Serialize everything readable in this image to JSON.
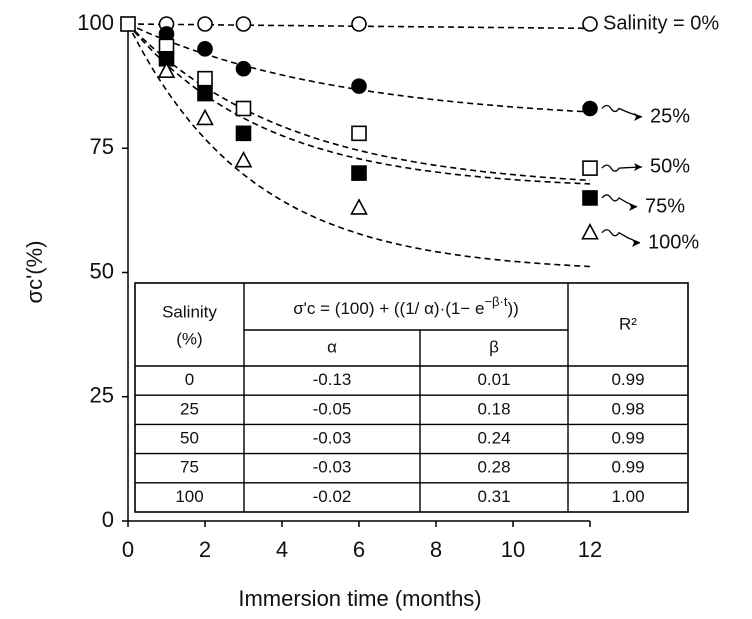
{
  "chart_data": {
    "type": "scatter",
    "x_label": "Immersion time (months)",
    "y_label": "σc'(%)",
    "xlim": [
      0,
      12
    ],
    "xticks": [
      0,
      2,
      4,
      6,
      8,
      10,
      12
    ],
    "ylim": [
      0,
      100
    ],
    "yticks": [
      0,
      25,
      50,
      75,
      100
    ],
    "grid": false,
    "series": [
      {
        "name": "Salinity = 0%",
        "color": "#000000",
        "marker": "circle",
        "filled": false,
        "x": [
          1,
          2,
          3,
          6,
          12
        ],
        "values": [
          100,
          100,
          100,
          100,
          100
        ]
      },
      {
        "name": "25%",
        "color": "#000000",
        "marker": "circle",
        "filled": true,
        "x": [
          1,
          2,
          3,
          6,
          12
        ],
        "values": [
          98,
          95,
          91,
          87.5,
          83
        ]
      },
      {
        "name": "50%",
        "color": "#000000",
        "marker": "square",
        "filled": false,
        "x": [
          0,
          1,
          2,
          3,
          6,
          12
        ],
        "values": [
          100,
          95.5,
          89,
          83,
          78,
          71
        ]
      },
      {
        "name": "75%",
        "color": "#000000",
        "marker": "square",
        "filled": true,
        "x": [
          1,
          2,
          3,
          6,
          12
        ],
        "values": [
          93,
          86,
          78,
          70,
          65
        ]
      },
      {
        "name": "100%",
        "color": "#000000",
        "marker": "triangle",
        "filled": false,
        "x": [
          1,
          2,
          3,
          6,
          12
        ],
        "values": [
          90.5,
          81,
          72.5,
          63,
          58
        ]
      }
    ],
    "table": {
      "salinity_header": [
        "Salinity",
        "(%)"
      ],
      "formula": {
        "lhs": "σ'c",
        "rhs": " = (100) + ((1/ α)·(1− e",
        "exp": "−β·t",
        "end": "))"
      },
      "alpha_header": "α",
      "beta_header": "β",
      "r2_header": "R²",
      "rows": [
        [
          "0",
          "-0.13",
          "0.01",
          "0.99"
        ],
        [
          "25",
          "-0.05",
          "0.18",
          "0.98"
        ],
        [
          "50",
          "-0.03",
          "0.24",
          "0.99"
        ],
        [
          "75",
          "-0.03",
          "0.28",
          "0.99"
        ],
        [
          "100",
          "-0.02",
          "0.31",
          "1.00"
        ]
      ]
    }
  }
}
